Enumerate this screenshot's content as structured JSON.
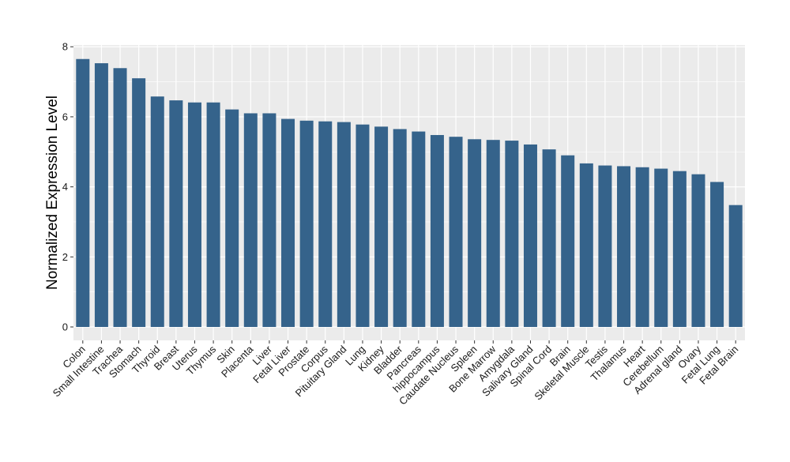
{
  "chart_data": {
    "type": "bar",
    "title": "",
    "xlabel": "",
    "ylabel": "Normalized Expression Level",
    "ylim": [
      0,
      8
    ],
    "yticks": [
      0,
      2,
      4,
      6,
      8
    ],
    "grid": true,
    "categories": [
      "Colon",
      "Small Intestine",
      "Trachea",
      "Stomach",
      "Thyroid",
      "Breast",
      "Uterus",
      "Thymus",
      "Skin",
      "Placenta",
      "Liver",
      "Fetal Liver",
      "Prostate",
      "Corpus",
      "Pituitary Gland",
      "Lung",
      "Kidney",
      "Bladder",
      "Pancreas",
      "hippocampus",
      "Caudate Nucleus",
      "Spleen",
      "Bone Marrow",
      "Amygdala",
      "Salivary Gland",
      "Spinal Cord",
      "Brain",
      "Skeletal Muscle",
      "Testis",
      "Thalamus",
      "Heart",
      "Cerebellum",
      "Adrenal gland",
      "Ovary",
      "Fetal Lung",
      "Fetal Brain"
    ],
    "values": [
      7.65,
      7.53,
      7.39,
      7.1,
      6.58,
      6.47,
      6.41,
      6.41,
      6.21,
      6.1,
      6.1,
      5.94,
      5.89,
      5.87,
      5.85,
      5.78,
      5.72,
      5.65,
      5.58,
      5.48,
      5.43,
      5.36,
      5.34,
      5.32,
      5.21,
      5.07,
      4.9,
      4.67,
      4.61,
      4.59,
      4.56,
      4.52,
      4.45,
      4.36,
      4.14,
      3.48
    ],
    "colors": {
      "bar": "#35638b",
      "panel": "#ebebeb",
      "grid": "#ffffff"
    }
  }
}
